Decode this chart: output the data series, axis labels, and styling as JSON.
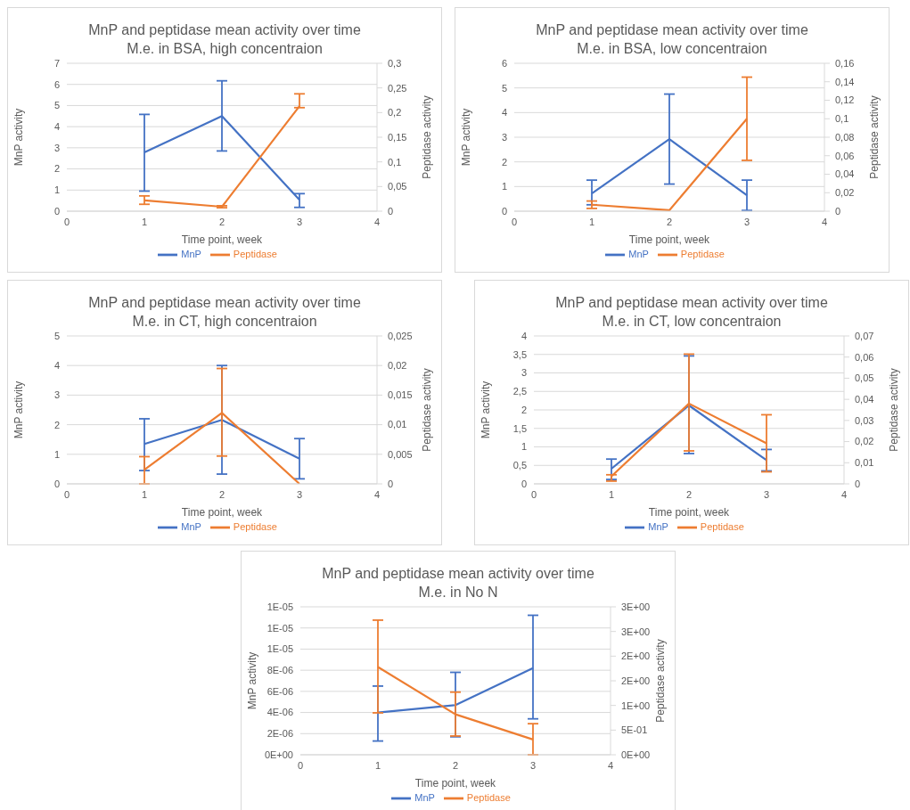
{
  "chart_data": [
    {
      "type": "line",
      "title": "MnP and peptidase mean activity over time",
      "subtitle": "M.e. in BSA, high concentraion",
      "xlabel": "Time point, week",
      "ylabel": "MnP activity",
      "y2label": "Peptidase activity",
      "x": [
        1,
        2,
        3
      ],
      "xlim": [
        0,
        4
      ],
      "xticks": [
        0,
        1,
        2,
        3,
        4
      ],
      "ylim": [
        0,
        7
      ],
      "yticks": [
        0,
        1,
        2,
        3,
        4,
        5,
        6,
        7
      ],
      "y2lim": [
        0,
        0.3
      ],
      "y2ticks": [
        {
          "value": 0,
          "label": "0"
        },
        {
          "value": 0.05,
          "label": "0,05"
        },
        {
          "value": 0.1,
          "label": "0,1"
        },
        {
          "value": 0.15,
          "label": "0,15"
        },
        {
          "value": 0.2,
          "label": "0,2"
        },
        {
          "value": 0.25,
          "label": "0,25"
        },
        {
          "value": 0.3,
          "label": "0,3"
        }
      ],
      "grid": "y",
      "legend": "bottom",
      "marker": "none",
      "series": [
        {
          "name": "MnP",
          "color": "#4472c4",
          "values": [
            2.78,
            4.5,
            0.54
          ],
          "errors": [
            [
              0.95,
              4.58
            ],
            [
              2.85,
              6.17
            ],
            [
              0.18,
              0.83
            ]
          ]
        },
        {
          "name": "Peptidase",
          "color": "#ed7d31",
          "axis": "y2",
          "values": [
            0.022,
            0.009,
            0.213
          ],
          "errors": [
            [
              0.014,
              0.031
            ],
            [
              0.007,
              0.011
            ],
            [
              0.21,
              0.238
            ]
          ]
        }
      ]
    },
    {
      "type": "line",
      "title": "MnP and peptidase mean activity over time",
      "subtitle": "M.e. in BSA, low concentraion",
      "xlabel": "Time point, week",
      "ylabel": "MnP activity",
      "y2label": "Peptidase activity",
      "x": [
        1,
        2,
        3
      ],
      "xlim": [
        0,
        4
      ],
      "xticks": [
        0,
        1,
        2,
        3,
        4
      ],
      "ylim": [
        0,
        6
      ],
      "yticks": [
        0,
        1,
        2,
        3,
        4,
        5,
        6
      ],
      "y2lim": [
        0,
        0.16
      ],
      "y2ticks": [
        {
          "value": 0,
          "label": "0"
        },
        {
          "value": 0.02,
          "label": "0,02"
        },
        {
          "value": 0.04,
          "label": "0,04"
        },
        {
          "value": 0.06,
          "label": "0,06"
        },
        {
          "value": 0.08,
          "label": "0,08"
        },
        {
          "value": 0.1,
          "label": "0,1"
        },
        {
          "value": 0.12,
          "label": "0,12"
        },
        {
          "value": 0.14,
          "label": "0,14"
        },
        {
          "value": 0.16,
          "label": "0,16"
        }
      ],
      "grid": "y",
      "legend": "bottom",
      "marker": "none",
      "series": [
        {
          "name": "MnP",
          "color": "#4472c4",
          "values": [
            0.72,
            2.92,
            0.65
          ],
          "errors": [
            [
              0.26,
              1.26
            ],
            [
              1.1,
              4.75
            ],
            [
              0.03,
              1.26
            ]
          ]
        },
        {
          "name": "Peptidase",
          "color": "#ed7d31",
          "axis": "y2",
          "values": [
            0.007,
            0.001,
            0.1
          ],
          "errors": [
            [
              0.003,
              0.011
            ],
            null,
            [
              0.055,
              0.145
            ]
          ]
        }
      ]
    },
    {
      "type": "line",
      "title": "MnP and peptidase mean activity over time",
      "subtitle": "M.e. in CT, high concentraion",
      "xlabel": "Time point, week",
      "ylabel": "MnP activity",
      "y2label": "Peptidase activity",
      "x": [
        1,
        2,
        3
      ],
      "xlim": [
        0,
        4
      ],
      "xticks": [
        0,
        1,
        2,
        3,
        4
      ],
      "ylim": [
        0,
        5
      ],
      "yticks": [
        0,
        1,
        2,
        3,
        4,
        5
      ],
      "y2lim": [
        0,
        0.025
      ],
      "y2ticks": [
        {
          "value": 0,
          "label": "0"
        },
        {
          "value": 0.005,
          "label": "0,005"
        },
        {
          "value": 0.01,
          "label": "0,01"
        },
        {
          "value": 0.015,
          "label": "0,015"
        },
        {
          "value": 0.02,
          "label": "0,02"
        },
        {
          "value": 0.025,
          "label": "0,025"
        }
      ],
      "grid": "y",
      "legend": "bottom",
      "marker": "none",
      "series": [
        {
          "name": "MnP",
          "color": "#4472c4",
          "values": [
            1.35,
            2.16,
            0.85
          ],
          "errors": [
            [
              0.45,
              2.2
            ],
            [
              0.33,
              4.0
            ],
            [
              0.17,
              1.53
            ]
          ]
        },
        {
          "name": "Peptidase",
          "color": "#ed7d31",
          "axis": "y2",
          "values": [
            0.0024,
            0.012,
            0
          ],
          "errors": [
            [
              0,
              0.0046
            ],
            [
              0.0047,
              0.0195
            ],
            null
          ]
        }
      ]
    },
    {
      "type": "line",
      "title": "MnP and peptidase mean activity over time",
      "subtitle": "M.e. in CT, low concentraion",
      "xlabel": "Time point, week",
      "ylabel": "MnP activity",
      "y2label": "Peptidase activity",
      "x": [
        1,
        2,
        3
      ],
      "xlim": [
        0,
        4
      ],
      "xticks": [
        0,
        1,
        2,
        3,
        4
      ],
      "ylim": [
        0,
        4
      ],
      "yticks": [
        0,
        {
          "value": 0.5,
          "label": "0,5"
        },
        1,
        {
          "value": 1.5,
          "label": "1,5"
        },
        2,
        {
          "value": 2.5,
          "label": "2,5"
        },
        3,
        {
          "value": 3.5,
          "label": "3,5"
        },
        4
      ],
      "y2lim": [
        0,
        0.07
      ],
      "y2ticks": [
        {
          "value": 0,
          "label": "0"
        },
        {
          "value": 0.01,
          "label": "0,01"
        },
        {
          "value": 0.02,
          "label": "0,02"
        },
        {
          "value": 0.03,
          "label": "0,03"
        },
        {
          "value": 0.04,
          "label": "0,04"
        },
        {
          "value": 0.05,
          "label": "0,05"
        },
        {
          "value": 0.06,
          "label": "0,06"
        },
        {
          "value": 0.07,
          "label": "0,07"
        }
      ],
      "grid": "y",
      "legend": "bottom",
      "marker": "none",
      "series": [
        {
          "name": "MnP",
          "color": "#4472c4",
          "values": [
            0.41,
            2.12,
            0.64
          ],
          "errors": [
            [
              0.12,
              0.67
            ],
            [
              0.82,
              3.46
            ],
            [
              0.35,
              0.93
            ]
          ]
        },
        {
          "name": "Peptidase",
          "color": "#ed7d31",
          "axis": "y2",
          "values": [
            0.0036,
            0.038,
            0.0192
          ],
          "errors": [
            [
              0.0013,
              0.0043
            ],
            [
              0.0156,
              0.0614
            ],
            [
              0.0057,
              0.0327
            ]
          ]
        }
      ]
    },
    {
      "type": "line",
      "title": "MnP and peptidase mean activity over time",
      "subtitle": "M.e. in No N",
      "xlabel": "Time point, week",
      "ylabel": "MnP activity",
      "y2label": "Peptidase activity",
      "x": [
        1,
        2,
        3
      ],
      "xlim": [
        0,
        4
      ],
      "xticks": [
        0,
        1,
        2,
        3,
        4
      ],
      "ylim": [
        0,
        1.4e-05
      ],
      "yticks": [
        {
          "value": 0,
          "label": "0E+00"
        },
        {
          "value": 2e-06,
          "label": "2E-06"
        },
        {
          "value": 4e-06,
          "label": "4E-06"
        },
        {
          "value": 6e-06,
          "label": "6E-06"
        },
        {
          "value": 8e-06,
          "label": "8E-06"
        },
        {
          "value": 1e-05,
          "label": "1E-05"
        },
        {
          "value": 1.2e-05,
          "label": "1E-05"
        },
        {
          "value": 1.4e-05,
          "label": "1E-05"
        }
      ],
      "y2lim": [
        0,
        3
      ],
      "y2ticks": [
        {
          "value": 0,
          "label": "0E+00"
        },
        {
          "value": 0.5,
          "label": "5E-01"
        },
        {
          "value": 1,
          "label": "1E+00"
        },
        {
          "value": 1.5,
          "label": "2E+00"
        },
        {
          "value": 2,
          "label": "2E+00"
        },
        {
          "value": 2.5,
          "label": "3E+00"
        },
        {
          "value": 3,
          "label": "3E+00"
        }
      ],
      "grid": "y",
      "legend": "bottom",
      "marker": "none",
      "series": [
        {
          "name": "MnP",
          "color": "#4472c4",
          "values": [
            4e-06,
            4.7e-06,
            8.2e-06
          ],
          "errors": [
            [
              1.3e-06,
              6.5e-06
            ],
            [
              1.7e-06,
              7.8e-06
            ],
            [
              3.4e-06,
              1.32e-05
            ]
          ]
        },
        {
          "name": "Peptidase",
          "color": "#ed7d31",
          "axis": "y2",
          "values": [
            1.78,
            0.82,
            0.31
          ],
          "errors": [
            [
              0.85,
              2.73
            ],
            [
              0.38,
              1.27
            ],
            [
              0,
              0.63
            ]
          ]
        }
      ]
    }
  ]
}
